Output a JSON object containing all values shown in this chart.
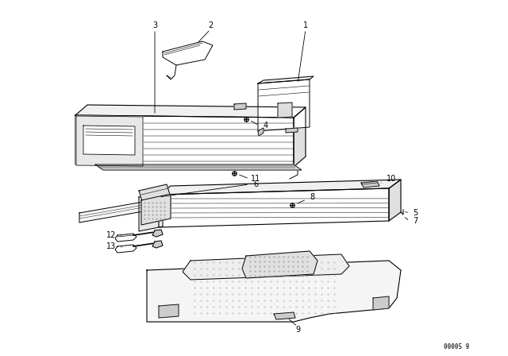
{
  "background_color": "#ffffff",
  "line_color": "#000000",
  "fig_width": 6.4,
  "fig_height": 4.48,
  "dpi": 100,
  "watermark": "00005 9"
}
